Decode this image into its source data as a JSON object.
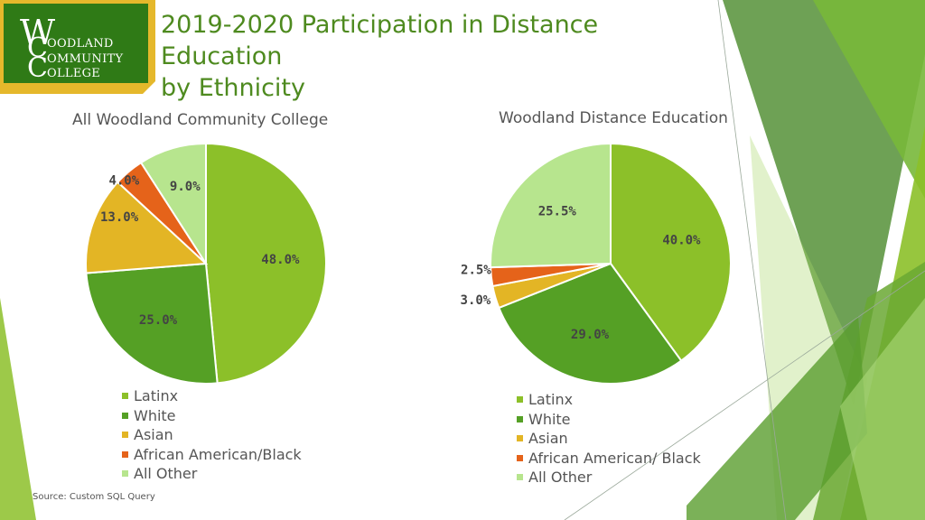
{
  "logo": {
    "lines": [
      "OODLAND",
      "OMMUNITY",
      "OLLEGE"
    ],
    "initials": [
      "W",
      "C",
      "C"
    ],
    "bg_color": "#2f7a16",
    "border_color": "#e5b82b"
  },
  "title": {
    "line1": "2019-2020 Participation in Distance Education",
    "line2": "by Ethnicity"
  },
  "colors": {
    "Latinx": "#8cc029",
    "White": "#55a025",
    "Asian": "#e3b525",
    "African American/Black": "#e5631a",
    "All Other": "#b7e58e"
  },
  "chart_data": [
    {
      "type": "pie",
      "title": "All Woodland Community College",
      "categories": [
        "Latinx",
        "White",
        "Asian",
        "African American/Black",
        "All Other"
      ],
      "values": [
        48.0,
        25.0,
        13.0,
        4.0,
        9.0
      ],
      "labels": [
        "48.0%",
        "25.0%",
        "13.0%",
        "4.0%",
        "9.0%"
      ],
      "legend": [
        "Latinx",
        "White",
        "Asian",
        "African American/Black",
        "All Other"
      ],
      "legend_position": "bottom"
    },
    {
      "type": "pie",
      "title": "Woodland Distance Education",
      "categories": [
        "Latinx",
        "White",
        "Asian",
        "African American/Black",
        "All Other"
      ],
      "values": [
        40.0,
        29.0,
        3.0,
        2.5,
        25.5
      ],
      "labels": [
        "40.0%",
        "29.0%",
        "3.0%",
        "2.5%",
        "25.5%"
      ],
      "legend": [
        "Latinx",
        "White",
        "Asian",
        "African American/ Black",
        "All Other"
      ],
      "legend_position": "bottom"
    }
  ],
  "source": "Source: Custom SQL Query"
}
